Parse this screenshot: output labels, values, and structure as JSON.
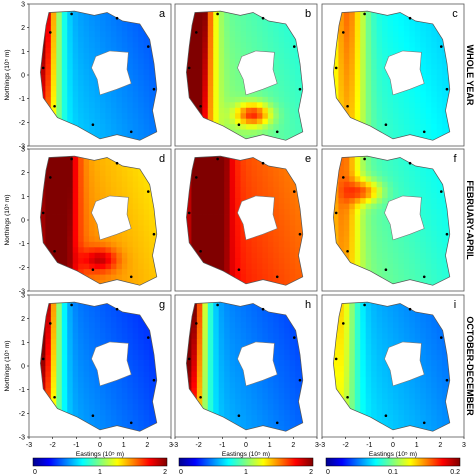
{
  "figure": {
    "rows": [
      {
        "label": "WHOLE YEAR",
        "panels": [
          "a",
          "b",
          "c"
        ]
      },
      {
        "label": "FEBRUARY-APRIL",
        "panels": [
          "d",
          "e",
          "f"
        ]
      },
      {
        "label": "OCTOBER-DECEMBER",
        "panels": [
          "g",
          "h",
          "i"
        ]
      }
    ],
    "ylabel": "Northings (10⁵ m)",
    "xlabel": "Eastings (10⁵ m)",
    "x_ticks": [
      "-3",
      "-2",
      "-1",
      "0",
      "1",
      "2",
      "3"
    ],
    "y_ticks": [
      "3",
      "2",
      "1",
      "0",
      "-1",
      "-2",
      "-3"
    ],
    "colorbars": [
      {
        "min": "0",
        "mid": "1",
        "max": "2"
      },
      {
        "min": "0",
        "mid": "1",
        "max": "2"
      },
      {
        "min": "0",
        "mid": "0.1",
        "max": "0.2"
      }
    ],
    "colors": {
      "frame": "#555555",
      "colormap": [
        "#00008f",
        "#0060ff",
        "#00e0ff",
        "#7fff7f",
        "#ffe000",
        "#ff4000",
        "#800000"
      ]
    }
  }
}
